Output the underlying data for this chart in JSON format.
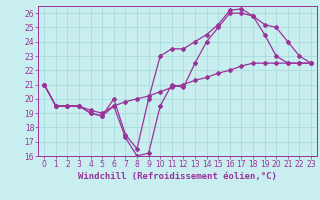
{
  "xlabel": "Windchill (Refroidissement éolien,°C)",
  "bg_color": "#c8eef0",
  "grid_color": "#aadddd",
  "line_color": "#993399",
  "xlim": [
    -0.5,
    23.5
  ],
  "ylim": [
    16,
    26.5
  ],
  "xticks": [
    0,
    1,
    2,
    3,
    4,
    5,
    6,
    7,
    8,
    9,
    10,
    11,
    12,
    13,
    14,
    15,
    16,
    17,
    18,
    19,
    20,
    21,
    22,
    23
  ],
  "yticks": [
    16,
    17,
    18,
    19,
    20,
    21,
    22,
    23,
    24,
    25,
    26
  ],
  "curve1_x": [
    0,
    1,
    2,
    3,
    4,
    5,
    6,
    7,
    8,
    9,
    10,
    11,
    12,
    13,
    14,
    15,
    16,
    17,
    18,
    19,
    20,
    21,
    22,
    23
  ],
  "curve1_y": [
    21.0,
    19.5,
    19.5,
    19.5,
    19.0,
    18.8,
    19.5,
    17.3,
    16.0,
    16.2,
    19.5,
    21.0,
    20.8,
    22.5,
    24.0,
    25.0,
    26.0,
    26.0,
    25.8,
    24.5,
    23.0,
    22.5,
    22.5,
    22.5
  ],
  "curve2_x": [
    0,
    1,
    2,
    3,
    4,
    5,
    6,
    7,
    8,
    9,
    10,
    11,
    12,
    13,
    14,
    15,
    16,
    17,
    18,
    19,
    20,
    21,
    22,
    23
  ],
  "curve2_y": [
    21.0,
    19.5,
    19.5,
    19.5,
    19.0,
    18.8,
    20.0,
    17.5,
    16.5,
    20.0,
    23.0,
    23.5,
    23.5,
    24.0,
    24.5,
    25.2,
    26.2,
    26.3,
    25.8,
    25.2,
    25.0,
    24.0,
    23.0,
    22.5
  ],
  "curve3_x": [
    0,
    1,
    2,
    3,
    4,
    5,
    6,
    7,
    8,
    9,
    10,
    11,
    12,
    13,
    14,
    15,
    16,
    17,
    18,
    19,
    20,
    21,
    22,
    23
  ],
  "curve3_y": [
    21.0,
    19.5,
    19.5,
    19.5,
    19.2,
    19.0,
    19.5,
    19.8,
    20.0,
    20.2,
    20.5,
    20.8,
    21.0,
    21.3,
    21.5,
    21.8,
    22.0,
    22.3,
    22.5,
    22.5,
    22.5,
    22.5,
    22.5,
    22.5
  ],
  "marker": "D",
  "marker_size": 2,
  "line_width": 0.9,
  "tick_fontsize": 5.5,
  "label_fontsize": 6.5
}
